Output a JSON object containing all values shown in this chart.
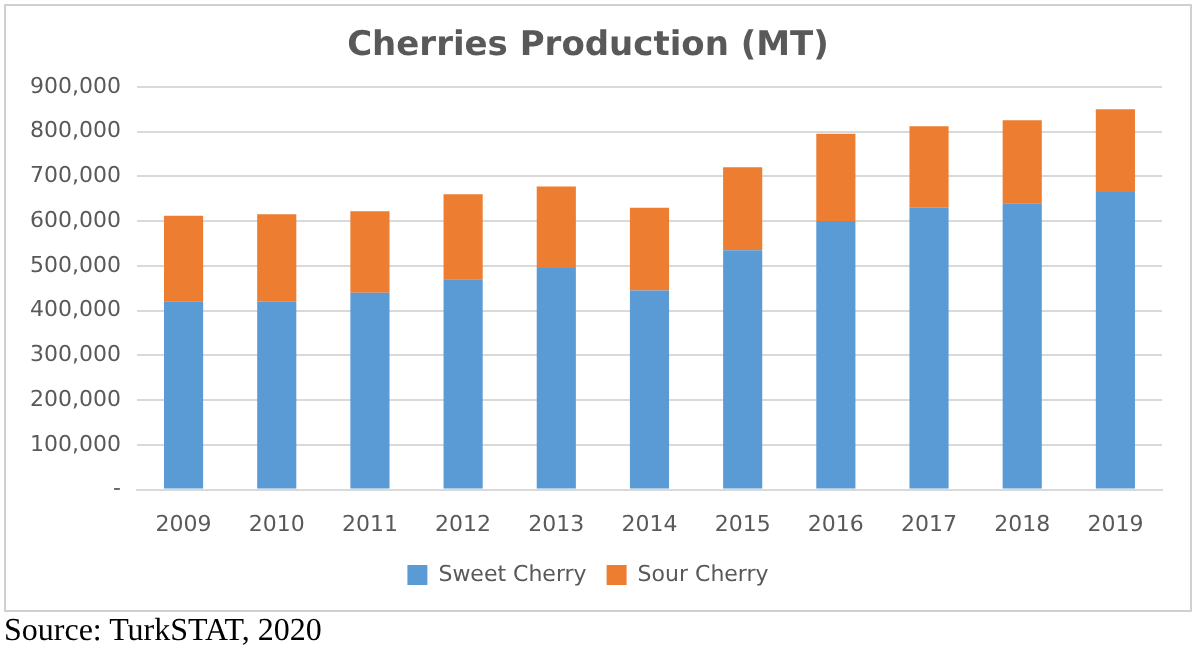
{
  "chart_data": {
    "type": "bar",
    "title": "Cherries Production (MT)",
    "stacked": true,
    "categories": [
      "2009",
      "2010",
      "2011",
      "2012",
      "2013",
      "2014",
      "2015",
      "2016",
      "2017",
      "2018",
      "2019"
    ],
    "series": [
      {
        "name": "Sweet Cherry",
        "color": "#5b9bd5",
        "values": [
          420000,
          420000,
          440000,
          470000,
          495000,
          445000,
          535000,
          600000,
          630000,
          640000,
          665000
        ]
      },
      {
        "name": "Sour Cherry",
        "color": "#ed7d31",
        "values": [
          192000,
          195000,
          182000,
          190000,
          182000,
          185000,
          185000,
          195000,
          182000,
          185000,
          185000
        ]
      }
    ],
    "ylim": [
      0,
      900000
    ],
    "yticks": [
      {
        "value": 0,
        "label": "-"
      },
      {
        "value": 100000,
        "label": "100,000"
      },
      {
        "value": 200000,
        "label": "200,000"
      },
      {
        "value": 300000,
        "label": "300,000"
      },
      {
        "value": 400000,
        "label": "400,000"
      },
      {
        "value": 500000,
        "label": "500,000"
      },
      {
        "value": 600000,
        "label": "600,000"
      },
      {
        "value": 700000,
        "label": "700,000"
      },
      {
        "value": 800000,
        "label": "800,000"
      },
      {
        "value": 900000,
        "label": "900,000"
      }
    ],
    "grid": "y",
    "legend": "bottom",
    "annotations": [
      "Source: TurkSTAT, 2020"
    ]
  }
}
